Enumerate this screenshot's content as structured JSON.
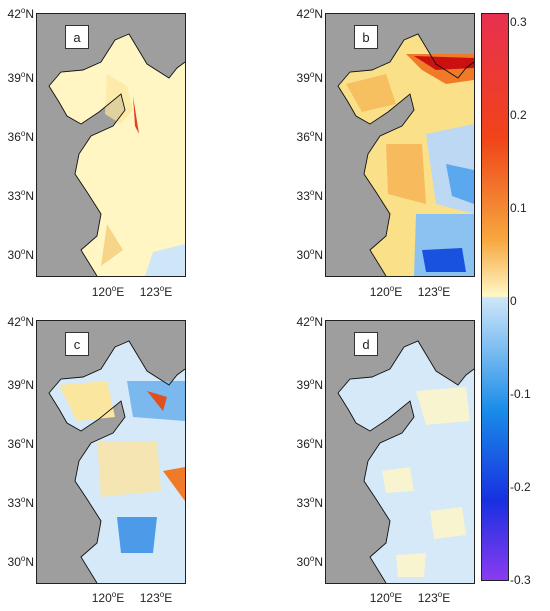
{
  "panels": [
    {
      "id": "a",
      "label": "a"
    },
    {
      "id": "b",
      "label": "b"
    },
    {
      "id": "c",
      "label": "c"
    },
    {
      "id": "d",
      "label": "d"
    }
  ],
  "lat_axis": {
    "ticks": [
      "42",
      "39",
      "36",
      "33",
      "30"
    ],
    "deg": "o",
    "hemi": "N"
  },
  "lon_axis": {
    "ticks": [
      "120",
      "123"
    ],
    "deg": "o",
    "hemi": "E"
  },
  "colorbar": {
    "ticks": [
      "0.3",
      "0.2",
      "0.1",
      "0",
      "-0.1",
      "-0.2",
      "-0.3"
    ],
    "range": [
      -0.32,
      0.32
    ],
    "colors": {
      "top": "#e83050",
      "high": "#f04418",
      "mid_high": "#f6a840",
      "low_pos": "#fff8c8",
      "low_neg": "#cfe6f8",
      "mid_low": "#1a8ce8",
      "low": "#1830e0",
      "bottom": "#8a3cf0"
    }
  }
}
